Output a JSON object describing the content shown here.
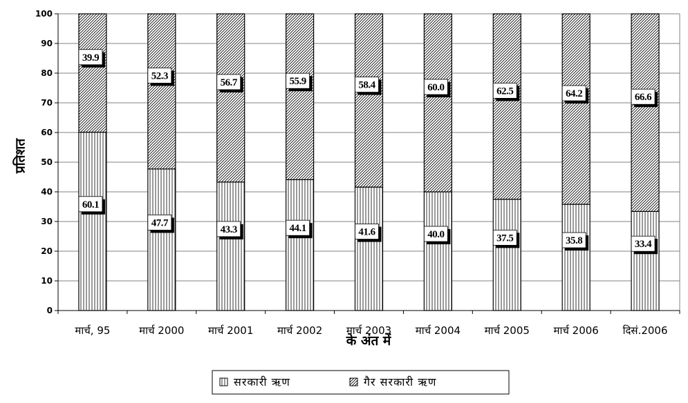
{
  "chart_data": {
    "type": "bar",
    "stacked": true,
    "title": "",
    "xlabel": "के अंत में",
    "ylabel": "प्रतिशत",
    "ylim": [
      0,
      100
    ],
    "yticks": [
      0,
      10,
      20,
      30,
      40,
      50,
      60,
      70,
      80,
      90,
      100
    ],
    "grid": true,
    "legend_position": "bottom-center",
    "categories": [
      "मार्च, 95",
      "मार्च 2000",
      "मार्च 2001",
      "मार्च 2002",
      "मार्च 2003",
      "मार्च 2004",
      "मार्च 2005",
      "मार्च 2006",
      "दिसं.2006"
    ],
    "series": [
      {
        "name": "सरकारी ऋण",
        "pattern": "vertical-lines",
        "values": [
          60.1,
          47.7,
          43.3,
          44.1,
          41.6,
          40.0,
          37.5,
          35.8,
          33.4
        ],
        "labels": [
          "60.1",
          "47.7",
          "43.3",
          "44.1",
          "41.6",
          "40.0",
          "37.5",
          "35.8",
          "33.4"
        ]
      },
      {
        "name": "गैर सरकारी ऋण",
        "pattern": "diagonal-hatch",
        "values": [
          39.9,
          52.3,
          56.7,
          55.9,
          58.4,
          60.0,
          62.5,
          64.2,
          66.6
        ],
        "labels": [
          "39.9",
          "52.3",
          "56.7",
          "55.9",
          "58.4",
          "60.0",
          "62.5",
          "64.2",
          "66.6"
        ]
      }
    ],
    "colors": {
      "bar_fill": "#ffffff",
      "line": "#000000",
      "grid": "#808080"
    }
  }
}
